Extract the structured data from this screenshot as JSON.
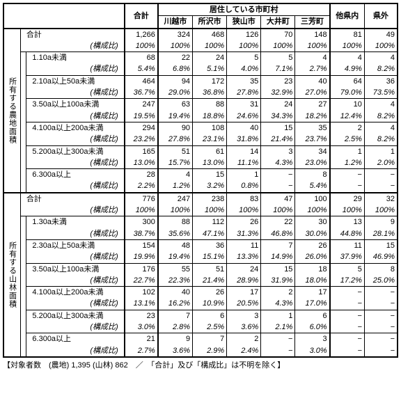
{
  "header": {
    "group": "居住している市町村",
    "total": "合計",
    "cols": [
      "川越市",
      "所沢市",
      "狭山市",
      "大井町",
      "三芳町",
      "他県内",
      "県外"
    ]
  },
  "sections": [
    {
      "title": "所有する農地面積",
      "total": {
        "v": [
          "1,266",
          "324",
          "468",
          "126",
          "70",
          "148",
          "81",
          "49"
        ],
        "p": [
          "100%",
          "100%",
          "100%",
          "100%",
          "100%",
          "100%",
          "100%",
          "100%"
        ]
      },
      "rows": [
        {
          "label": "1.10a未満",
          "v": [
            "68",
            "22",
            "24",
            "5",
            "5",
            "4",
            "4",
            "4"
          ],
          "p": [
            "5.4%",
            "6.8%",
            "5.1%",
            "4.0%",
            "7.1%",
            "2.7%",
            "4.9%",
            "8.2%"
          ]
        },
        {
          "label": "2.10a以上50a未満",
          "v": [
            "464",
            "94",
            "172",
            "35",
            "23",
            "40",
            "64",
            "36"
          ],
          "p": [
            "36.7%",
            "29.0%",
            "36.8%",
            "27.8%",
            "32.9%",
            "27.0%",
            "79.0%",
            "73.5%"
          ]
        },
        {
          "label": "3.50a以上100a未満",
          "v": [
            "247",
            "63",
            "88",
            "31",
            "24",
            "27",
            "10",
            "4"
          ],
          "p": [
            "19.5%",
            "19.4%",
            "18.8%",
            "24.6%",
            "34.3%",
            "18.2%",
            "12.4%",
            "8.2%"
          ]
        },
        {
          "label": "4.100a以上200a未満",
          "v": [
            "294",
            "90",
            "108",
            "40",
            "15",
            "35",
            "2",
            "4"
          ],
          "p": [
            "23.2%",
            "27.8%",
            "23.1%",
            "31.8%",
            "21.4%",
            "23.7%",
            "2.5%",
            "8.2%"
          ]
        },
        {
          "label": "5.200a以上300a未満",
          "v": [
            "165",
            "51",
            "61",
            "14",
            "3",
            "34",
            "1",
            "1"
          ],
          "p": [
            "13.0%",
            "15.7%",
            "13.0%",
            "11.1%",
            "4.3%",
            "23.0%",
            "1.2%",
            "2.0%"
          ]
        },
        {
          "label": "6.300a以上",
          "v": [
            "28",
            "4",
            "15",
            "1",
            "−",
            "8",
            "−",
            "−"
          ],
          "p": [
            "2.2%",
            "1.2%",
            "3.2%",
            "0.8%",
            "−",
            "5.4%",
            "−",
            "−"
          ]
        }
      ]
    },
    {
      "title": "所有する山林面積",
      "total": {
        "v": [
          "776",
          "247",
          "238",
          "83",
          "47",
          "100",
          "29",
          "32"
        ],
        "p": [
          "100%",
          "100%",
          "100%",
          "100%",
          "100%",
          "100%",
          "100%",
          "100%"
        ]
      },
      "rows": [
        {
          "label": "1.30a未満",
          "v": [
            "300",
            "88",
            "112",
            "26",
            "22",
            "30",
            "13",
            "9"
          ],
          "p": [
            "38.7%",
            "35.6%",
            "47.1%",
            "31.3%",
            "46.8%",
            "30.0%",
            "44.8%",
            "28.1%"
          ]
        },
        {
          "label": "2.30a以上50a未満",
          "v": [
            "154",
            "48",
            "36",
            "11",
            "7",
            "26",
            "11",
            "15"
          ],
          "p": [
            "19.9%",
            "19.4%",
            "15.1%",
            "13.3%",
            "14.9%",
            "26.0%",
            "37.9%",
            "46.9%"
          ]
        },
        {
          "label": "3.50a以上100a未満",
          "v": [
            "176",
            "55",
            "51",
            "24",
            "15",
            "18",
            "5",
            "8"
          ],
          "p": [
            "22.7%",
            "22.3%",
            "21.4%",
            "28.9%",
            "31.9%",
            "18.0%",
            "17.2%",
            "25.0%"
          ]
        },
        {
          "label": "4.100a以上200a未満",
          "v": [
            "102",
            "40",
            "26",
            "17",
            "2",
            "17",
            "−",
            "−"
          ],
          "p": [
            "13.1%",
            "16.2%",
            "10.9%",
            "20.5%",
            "4.3%",
            "17.0%",
            "−",
            "−"
          ]
        },
        {
          "label": "5.200a以上300a未満",
          "v": [
            "23",
            "7",
            "6",
            "3",
            "1",
            "6",
            "−",
            "−"
          ],
          "p": [
            "3.0%",
            "2.8%",
            "2.5%",
            "3.6%",
            "2.1%",
            "6.0%",
            "−",
            "−"
          ]
        },
        {
          "label": "6.300a以上",
          "v": [
            "21",
            "9",
            "7",
            "2",
            "−",
            "3",
            "−",
            "−"
          ],
          "p": [
            "2.7%",
            "3.6%",
            "2.9%",
            "2.4%",
            "−",
            "3.0%",
            "−",
            "−"
          ]
        }
      ]
    }
  ],
  "kosei": "(構成比)",
  "gokei": "合計",
  "footer": "【対象者数　(農地) 1,395 (山林) 862　／　「合計」及び「構成比」は不明を除く】"
}
